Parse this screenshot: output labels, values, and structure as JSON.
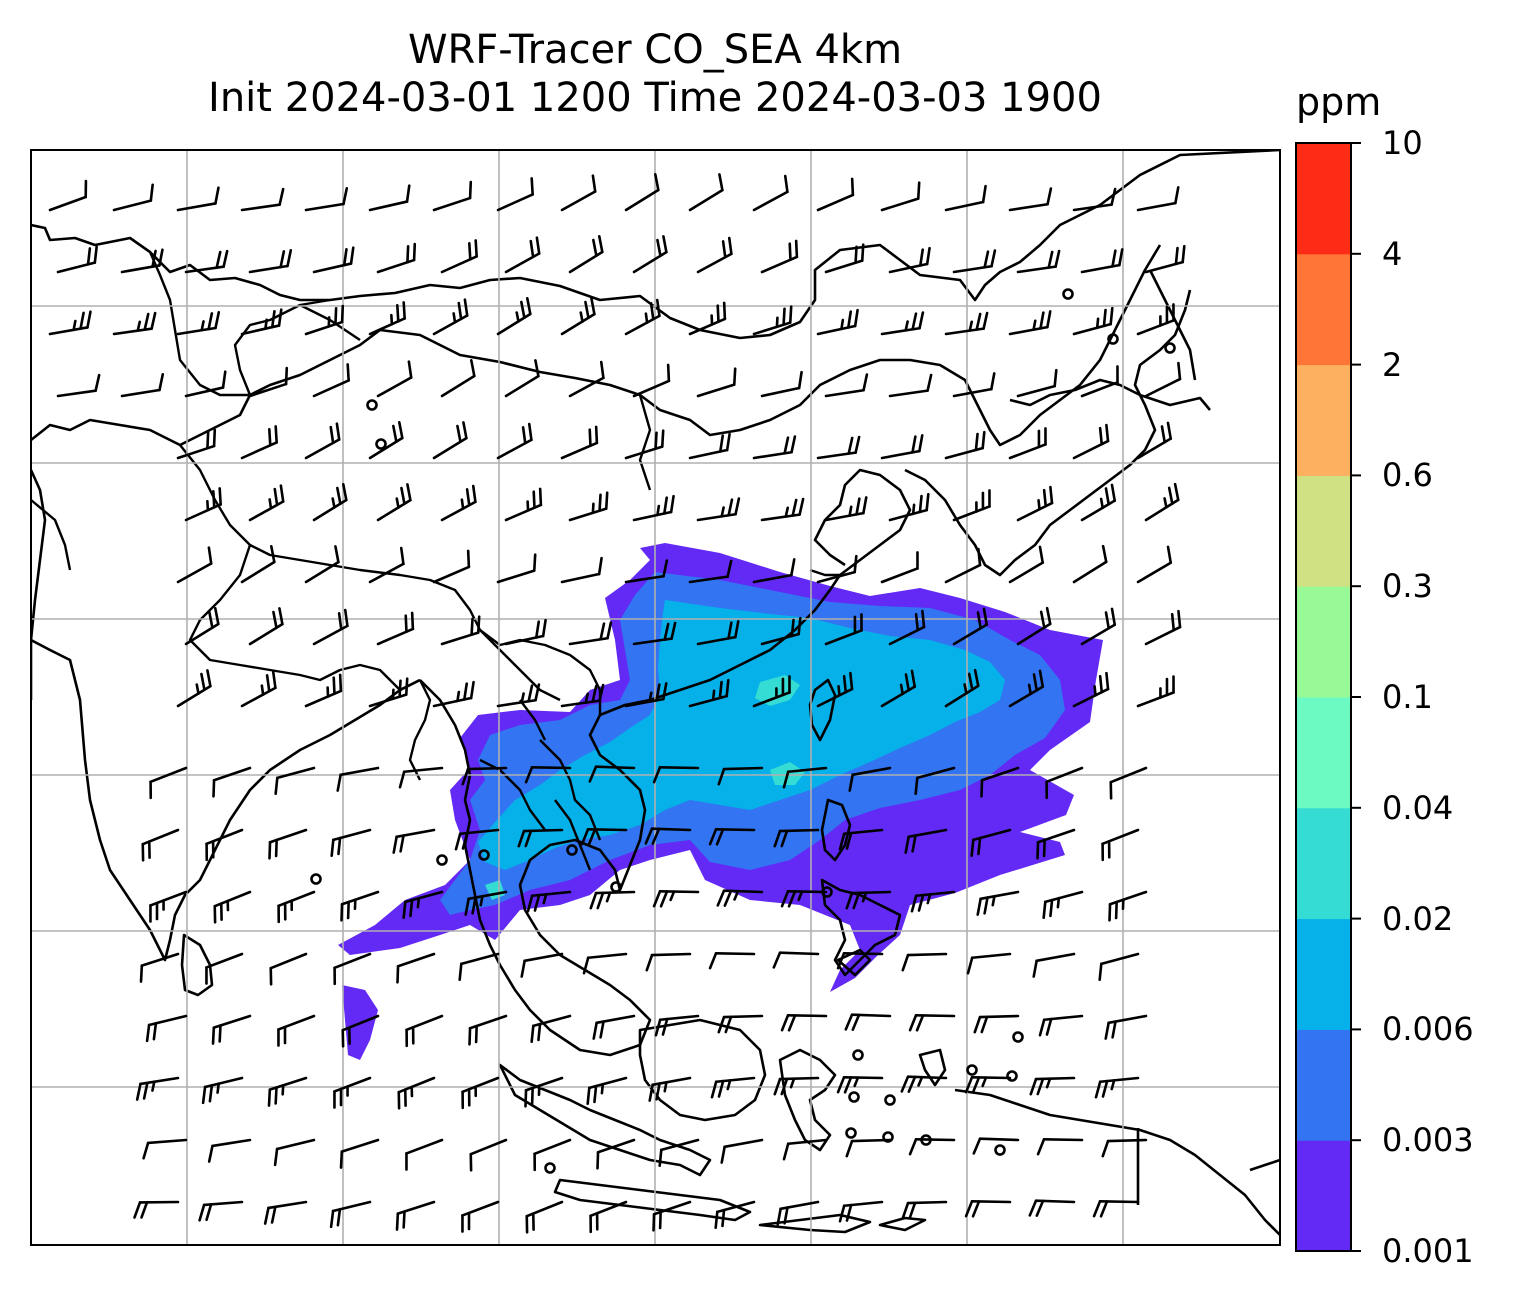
{
  "title": {
    "line1": "WRF-Tracer CO_SEA 4km",
    "line2": "Init 2024-03-01 1200 Time 2024-03-03 1900"
  },
  "colorbar": {
    "unit": "ppm",
    "levels": [
      "0.001",
      "0.003",
      "0.006",
      "0.02",
      "0.04",
      "0.1",
      "0.3",
      "0.6",
      "2",
      "4",
      "10"
    ],
    "colors": [
      "#6329f5",
      "#3274f2",
      "#06b1ea",
      "#34dcd3",
      "#6cfac2",
      "#97fa97",
      "#d0e183",
      "#fdb060",
      "#ff7537",
      "#fe2c17"
    ]
  },
  "map": {
    "features": [
      "coastlines",
      "borders",
      "gridlines",
      "wind-barbs",
      "co-tracer-plume"
    ]
  }
}
